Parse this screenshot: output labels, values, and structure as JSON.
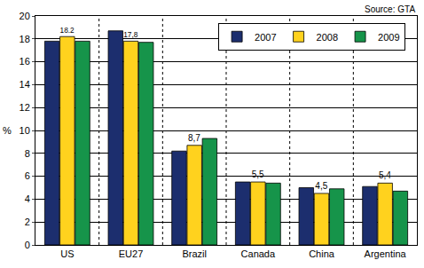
{
  "chart_data": {
    "type": "bar",
    "source": "Source: GTA",
    "y_label": "%",
    "categories": [
      "US",
      "EU27",
      "Brazil",
      "Canada",
      "China",
      "Argentina"
    ],
    "series": [
      {
        "name": "2007",
        "color": "#1c2e6e",
        "values": [
          17.8,
          18.7,
          8.2,
          5.5,
          5.0,
          5.1
        ]
      },
      {
        "name": "2008",
        "color": "#ffd21e",
        "values": [
          18.2,
          17.8,
          8.7,
          5.5,
          4.5,
          5.4
        ],
        "value_labels": [
          "18.2",
          "17,8",
          "8,7",
          "5,5",
          "4,5",
          "5,4"
        ]
      },
      {
        "name": "2009",
        "color": "#16944a",
        "values": [
          17.8,
          17.7,
          9.3,
          5.4,
          4.9,
          4.7
        ]
      }
    ],
    "ylim": [
      0,
      20
    ],
    "yticks": [
      0,
      2,
      4,
      6,
      8,
      10,
      12,
      14,
      16,
      18,
      20
    ],
    "grid": true,
    "legend": "upper right"
  }
}
